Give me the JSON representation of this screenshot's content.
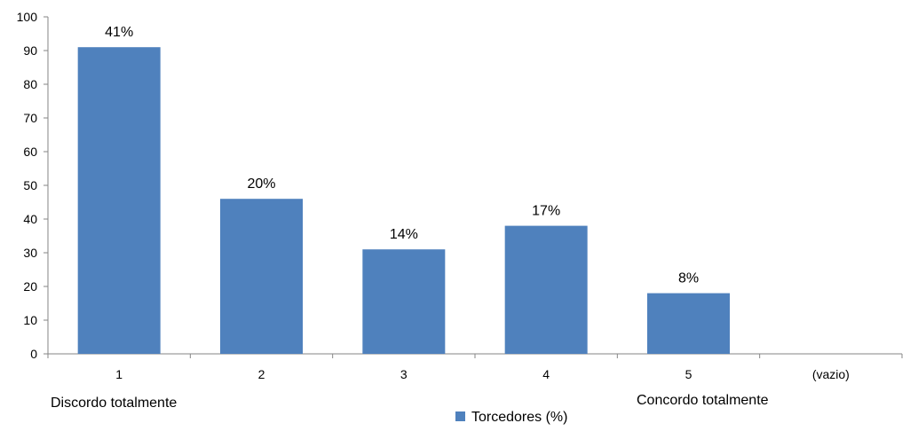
{
  "chart_data": {
    "type": "bar",
    "categories": [
      "1",
      "2",
      "3",
      "4",
      "5",
      "(vazio)"
    ],
    "series": [
      {
        "name": "Torcedores (%)",
        "values": [
          91,
          46,
          31,
          38,
          18,
          null
        ],
        "labels": [
          "41%",
          "20%",
          "14%",
          "17%",
          "8%",
          ""
        ],
        "color": "#4F81BD"
      }
    ],
    "ylim": [
      0,
      100
    ],
    "yticks": [
      0,
      10,
      20,
      30,
      40,
      50,
      60,
      70,
      80,
      90,
      100
    ],
    "grid": false,
    "legend": "bottom",
    "annotations": {
      "left": "Discordo totalmente",
      "right": "Concordo totalmente"
    },
    "axis_color": "#868686",
    "text_color": "#000000"
  }
}
